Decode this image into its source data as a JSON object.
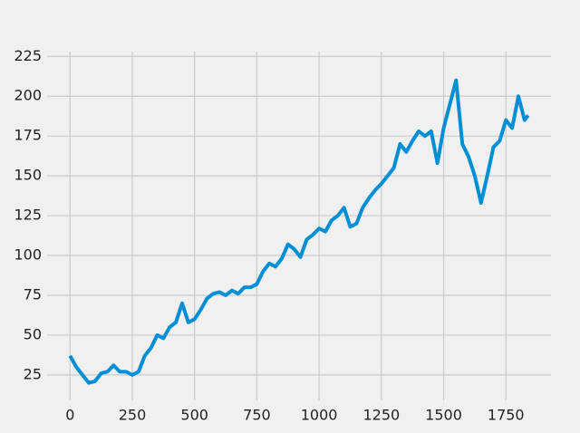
{
  "chart_data": {
    "type": "line",
    "x": [
      0,
      25,
      50,
      75,
      100,
      125,
      150,
      175,
      200,
      225,
      250,
      275,
      300,
      325,
      350,
      375,
      400,
      425,
      450,
      475,
      500,
      525,
      550,
      575,
      600,
      625,
      650,
      675,
      700,
      725,
      750,
      775,
      800,
      825,
      850,
      875,
      900,
      925,
      950,
      975,
      1000,
      1025,
      1050,
      1075,
      1100,
      1125,
      1150,
      1175,
      1200,
      1225,
      1250,
      1275,
      1300,
      1325,
      1350,
      1375,
      1400,
      1425,
      1450,
      1475,
      1500,
      1525,
      1550,
      1575,
      1600,
      1625,
      1650,
      1675,
      1700,
      1725,
      1750,
      1775,
      1800,
      1825,
      1839
    ],
    "series": [
      {
        "color": "#008fd5",
        "values": [
          37,
          30,
          25,
          20,
          21,
          26,
          27,
          31,
          27,
          27,
          25,
          27,
          37,
          42,
          50,
          48,
          55,
          58,
          70,
          58,
          60,
          66,
          73,
          76,
          77,
          75,
          78,
          76,
          80,
          80,
          82,
          90,
          95,
          93,
          98,
          107,
          104,
          99,
          110,
          113,
          117,
          115,
          122,
          125,
          130,
          118,
          120,
          130,
          136,
          141,
          145,
          150,
          155,
          170,
          165,
          172,
          178,
          175,
          178,
          158,
          180,
          195,
          210,
          170,
          162,
          150,
          133,
          150,
          168,
          172,
          185,
          180,
          200,
          185,
          188
        ]
      }
    ],
    "xlim": [
      -92,
      1931
    ],
    "ylim": [
      9,
      228
    ],
    "xticks": [
      0,
      250,
      500,
      750,
      1000,
      1250,
      1500,
      1750
    ],
    "yticks": [
      25,
      50,
      75,
      100,
      125,
      150,
      175,
      200,
      225
    ],
    "grid": true
  }
}
